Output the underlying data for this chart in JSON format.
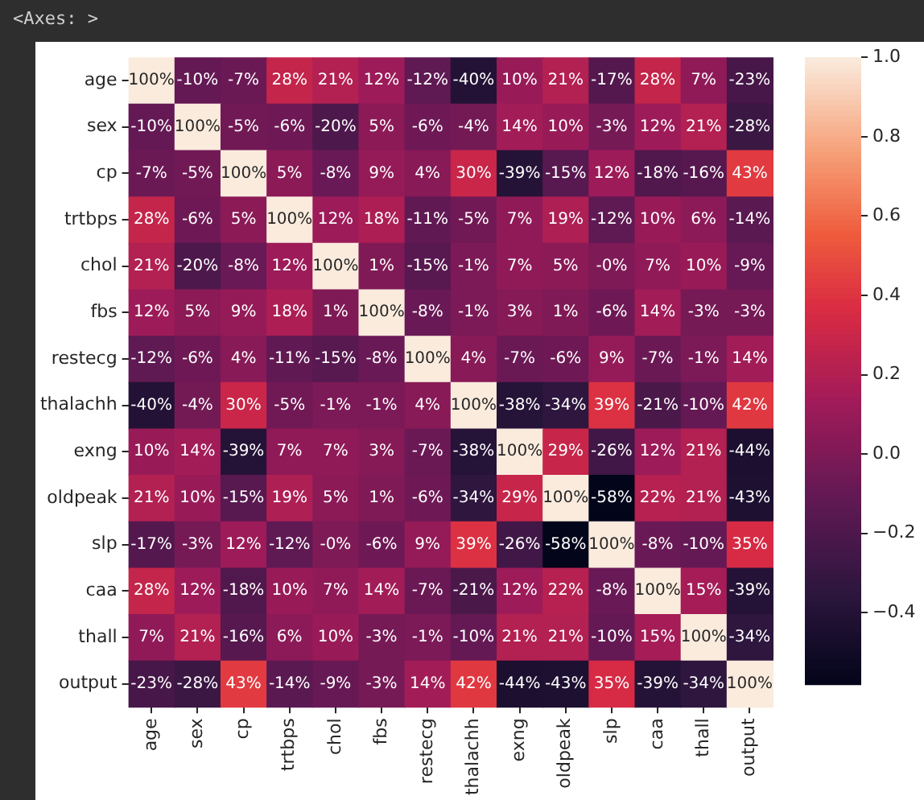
{
  "chart_data": {
    "type": "heatmap",
    "title": "<Axes: >",
    "categories": [
      "age",
      "sex",
      "cp",
      "trtbps",
      "chol",
      "fbs",
      "restecg",
      "thalachh",
      "exng",
      "oldpeak",
      "slp",
      "caa",
      "thall",
      "output"
    ],
    "y_categories": [
      "age",
      "sex",
      "cp",
      "trtbps",
      "chol",
      "fbs",
      "restecg",
      "thalachh",
      "exng",
      "oldpeak",
      "slp",
      "caa",
      "thall",
      "output"
    ],
    "cells": [
      [
        1,
        -0.1,
        -0.07,
        0.28,
        0.21,
        0.12,
        -0.12,
        -0.4,
        0.1,
        0.21,
        -0.17,
        0.28,
        0.07,
        -0.23
      ],
      [
        -0.1,
        1,
        -0.05,
        -0.06,
        -0.2,
        0.05,
        -0.06,
        -0.04,
        0.14,
        0.1,
        -0.03,
        0.12,
        0.21,
        -0.28
      ],
      [
        -0.07,
        -0.05,
        1,
        0.05,
        -0.08,
        0.09,
        0.04,
        0.3,
        -0.39,
        -0.15,
        0.12,
        -0.18,
        -0.16,
        0.43
      ],
      [
        0.28,
        -0.06,
        0.05,
        1,
        0.12,
        0.18,
        -0.11,
        -0.05,
        0.07,
        0.19,
        -0.12,
        0.1,
        0.06,
        -0.14
      ],
      [
        0.21,
        -0.2,
        -0.08,
        0.12,
        1,
        0.01,
        -0.15,
        -0.01,
        0.07,
        0.05,
        0,
        0.07,
        0.1,
        -0.09
      ],
      [
        0.12,
        0.05,
        0.09,
        0.18,
        0.01,
        1,
        -0.08,
        -0.01,
        0.03,
        0.01,
        -0.06,
        0.14,
        -0.03,
        -0.03
      ],
      [
        -0.12,
        -0.06,
        0.04,
        -0.11,
        -0.15,
        -0.08,
        1,
        0.04,
        -0.07,
        -0.06,
        0.09,
        -0.07,
        -0.01,
        0.14
      ],
      [
        -0.4,
        -0.04,
        0.3,
        -0.05,
        -0.01,
        -0.01,
        0.04,
        1,
        -0.38,
        -0.34,
        0.39,
        -0.21,
        -0.1,
        0.42
      ],
      [
        0.1,
        0.14,
        -0.39,
        0.07,
        0.07,
        0.03,
        -0.07,
        -0.38,
        1,
        0.29,
        -0.26,
        0.12,
        0.21,
        -0.44
      ],
      [
        0.21,
        0.1,
        -0.15,
        0.19,
        0.05,
        0.01,
        -0.06,
        -0.34,
        0.29,
        1,
        -0.58,
        0.22,
        0.21,
        -0.43
      ],
      [
        -0.17,
        -0.03,
        0.12,
        -0.12,
        0,
        -0.06,
        0.09,
        0.39,
        -0.26,
        -0.58,
        1,
        -0.08,
        -0.1,
        0.35
      ],
      [
        0.28,
        0.12,
        -0.18,
        0.1,
        0.07,
        0.14,
        -0.07,
        -0.21,
        0.12,
        0.22,
        -0.08,
        1,
        0.15,
        -0.39
      ],
      [
        0.07,
        0.21,
        -0.16,
        0.06,
        0.1,
        -0.03,
        -0.01,
        -0.1,
        0.21,
        0.21,
        -0.1,
        0.15,
        1,
        -0.34
      ],
      [
        -0.23,
        -0.28,
        0.43,
        -0.14,
        -0.09,
        -0.03,
        0.14,
        0.42,
        -0.44,
        -0.43,
        0.35,
        -0.39,
        -0.34,
        1
      ]
    ],
    "cell_labels": [
      [
        "100%",
        "-10%",
        "-7%",
        "28%",
        "21%",
        "12%",
        "-12%",
        "-40%",
        "10%",
        "21%",
        "-17%",
        "28%",
        "7%",
        "-23%"
      ],
      [
        "-10%",
        "100%",
        "-5%",
        "-6%",
        "-20%",
        "5%",
        "-6%",
        "-4%",
        "14%",
        "10%",
        "-3%",
        "12%",
        "21%",
        "-28%"
      ],
      [
        "-7%",
        "-5%",
        "100%",
        "5%",
        "-8%",
        "9%",
        "4%",
        "30%",
        "-39%",
        "-15%",
        "12%",
        "-18%",
        "-16%",
        "43%"
      ],
      [
        "28%",
        "-6%",
        "5%",
        "100%",
        "12%",
        "18%",
        "-11%",
        "-5%",
        "7%",
        "19%",
        "-12%",
        "10%",
        "6%",
        "-14%"
      ],
      [
        "21%",
        "-20%",
        "-8%",
        "12%",
        "100%",
        "1%",
        "-15%",
        "-1%",
        "7%",
        "5%",
        "-0%",
        "7%",
        "10%",
        "-9%"
      ],
      [
        "12%",
        "5%",
        "9%",
        "18%",
        "1%",
        "100%",
        "-8%",
        "-1%",
        "3%",
        "1%",
        "-6%",
        "14%",
        "-3%",
        "-3%"
      ],
      [
        "-12%",
        "-6%",
        "4%",
        "-11%",
        "-15%",
        "-8%",
        "100%",
        "4%",
        "-7%",
        "-6%",
        "9%",
        "-7%",
        "-1%",
        "14%"
      ],
      [
        "-40%",
        "-4%",
        "30%",
        "-5%",
        "-1%",
        "-1%",
        "4%",
        "100%",
        "-38%",
        "-34%",
        "39%",
        "-21%",
        "-10%",
        "42%"
      ],
      [
        "10%",
        "14%",
        "-39%",
        "7%",
        "7%",
        "3%",
        "-7%",
        "-38%",
        "100%",
        "29%",
        "-26%",
        "12%",
        "21%",
        "-44%"
      ],
      [
        "21%",
        "10%",
        "-15%",
        "19%",
        "5%",
        "1%",
        "-6%",
        "-34%",
        "29%",
        "100%",
        "-58%",
        "22%",
        "21%",
        "-43%"
      ],
      [
        "-17%",
        "-3%",
        "12%",
        "-12%",
        "-0%",
        "-6%",
        "9%",
        "39%",
        "-26%",
        "-58%",
        "100%",
        "-8%",
        "-10%",
        "35%"
      ],
      [
        "28%",
        "12%",
        "-18%",
        "10%",
        "7%",
        "14%",
        "-7%",
        "-21%",
        "12%",
        "22%",
        "-8%",
        "100%",
        "15%",
        "-39%"
      ],
      [
        "7%",
        "21%",
        "-16%",
        "6%",
        "10%",
        "-3%",
        "-1%",
        "-10%",
        "21%",
        "21%",
        "-10%",
        "15%",
        "100%",
        "-34%"
      ],
      [
        "-23%",
        "-28%",
        "43%",
        "-14%",
        "-9%",
        "-3%",
        "14%",
        "42%",
        "-44%",
        "-43%",
        "35%",
        "-39%",
        "-34%",
        "100%"
      ]
    ],
    "clim": [
      -0.58,
      1.0
    ],
    "cticks": [
      {
        "value": -0.4,
        "label": "−0.4"
      },
      {
        "value": -0.2,
        "label": "−0.2"
      },
      {
        "value": 0,
        "label": "0.0"
      },
      {
        "value": 0.2,
        "label": "0.2"
      },
      {
        "value": 0.4,
        "label": "0.4"
      },
      {
        "value": 0.6,
        "label": "0.6"
      },
      {
        "value": 0.8,
        "label": "0.8"
      },
      {
        "value": 1.0,
        "label": "1.0"
      }
    ]
  }
}
